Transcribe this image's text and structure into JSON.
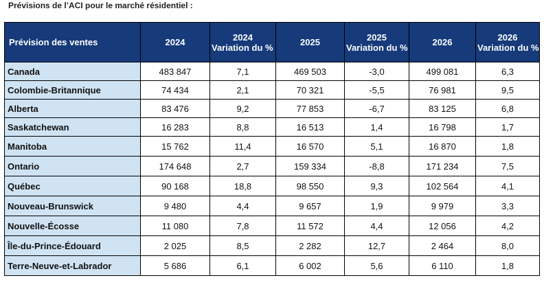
{
  "caption": "Prévisions de l’ACI pour le marché résidentiel :",
  "header": {
    "first": "Prévision des ventes",
    "columns": [
      {
        "year": "2024",
        "sub": ""
      },
      {
        "year": "2024",
        "sub": "Variation du % annuel"
      },
      {
        "year": "2025",
        "sub": ""
      },
      {
        "year": "2025",
        "sub": "Variation du % annuel"
      },
      {
        "year": "2026",
        "sub": ""
      },
      {
        "year": "2026",
        "sub": "Variation du % annuel"
      }
    ]
  },
  "rows": [
    {
      "region": "Canada",
      "values": [
        "483 847",
        "7,1",
        "469 503",
        "-3,0",
        "499 081",
        "6,3"
      ]
    },
    {
      "region": "Colombie-Britannique",
      "values": [
        "74 434",
        "2,1",
        "70 321",
        "-5,5",
        "76 981",
        "9,5"
      ]
    },
    {
      "region": "Alberta",
      "values": [
        "83 476",
        "9,2",
        "77 853",
        "-6,7",
        "83 125",
        "6,8"
      ]
    },
    {
      "region": "Saskatchewan",
      "values": [
        "16 283",
        "8,8",
        "16 513",
        "1,4",
        "16 798",
        "1,7"
      ]
    },
    {
      "region": "Manitoba",
      "values": [
        "15 762",
        "11,4",
        "16 570",
        "5,1",
        "16 870",
        "1,8"
      ]
    },
    {
      "region": "Ontario",
      "values": [
        "174 648",
        "2,7",
        "159 334",
        "-8,8",
        "171 234",
        "7,5"
      ]
    },
    {
      "region": "Québec",
      "values": [
        "90 168",
        "18,8",
        "98 550",
        "9,3",
        "102 564",
        "4,1"
      ]
    },
    {
      "region": "Nouveau-Brunswick",
      "values": [
        "9 480",
        "4,4",
        "9 657",
        "1,9",
        "9 979",
        "3,3"
      ]
    },
    {
      "region": "Nouvelle-Écosse",
      "values": [
        "11 080",
        "7,8",
        "11 572",
        "4,4",
        "12 056",
        "4,2"
      ]
    },
    {
      "region": "Île-du-Prince-Édouard",
      "values": [
        "2 025",
        "8,5",
        "2 282",
        "12,7",
        "2 464",
        "8,0"
      ]
    },
    {
      "region": "Terre-Neuve-et-Labrador",
      "values": [
        "5 686",
        "6,1",
        "6 002",
        "5,6",
        "6 110",
        "1,8"
      ]
    }
  ]
}
